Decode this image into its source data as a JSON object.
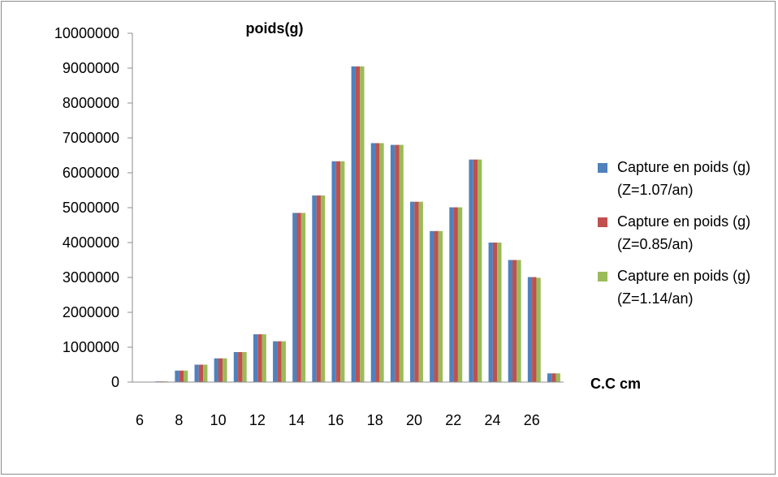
{
  "chart_data": {
    "type": "bar",
    "title": "poids(g)",
    "xlabel": "C.C cm",
    "ylabel": "",
    "ylim": [
      0,
      10000000
    ],
    "yticks": [
      "0",
      "1000000",
      "2000000",
      "3000000",
      "4000000",
      "5000000",
      "6000000",
      "7000000",
      "8000000",
      "9000000",
      "10000000"
    ],
    "categories": [
      "6",
      "7",
      "8",
      "9",
      "10",
      "11",
      "12",
      "13",
      "14",
      "15",
      "16",
      "17",
      "18",
      "19",
      "20",
      "21",
      "22",
      "23",
      "24",
      "25",
      "26",
      "27"
    ],
    "xtick_labels": [
      "6",
      "",
      "8",
      "",
      "10",
      "",
      "12",
      "",
      "14",
      "",
      "16",
      "",
      "18",
      "",
      "20",
      "",
      "22",
      "",
      "24",
      "",
      "26",
      ""
    ],
    "legend_position": "right",
    "grid": false,
    "series": [
      {
        "name": "Capture en poids (g)(Z=1.07/an)",
        "color": "#4F81BD",
        "values": [
          0,
          20000,
          330000,
          500000,
          680000,
          860000,
          1370000,
          1170000,
          4850000,
          5350000,
          6330000,
          9050000,
          6850000,
          6800000,
          5170000,
          4330000,
          5010000,
          6380000,
          4000000,
          3500000,
          3010000,
          250000
        ]
      },
      {
        "name": "Capture en poids (g)(Z=0.85/an)",
        "color": "#C0504D",
        "values": [
          0,
          20000,
          330000,
          500000,
          680000,
          860000,
          1370000,
          1170000,
          4850000,
          5350000,
          6330000,
          9050000,
          6850000,
          6800000,
          5170000,
          4330000,
          5010000,
          6380000,
          4000000,
          3500000,
          3010000,
          250000
        ]
      },
      {
        "name": "Capture en poids (g)(Z=1.14/an)",
        "color": "#9BBB59",
        "values": [
          0,
          20000,
          330000,
          500000,
          680000,
          860000,
          1370000,
          1170000,
          4850000,
          5350000,
          6330000,
          9050000,
          6850000,
          6800000,
          5170000,
          4330000,
          5010000,
          6380000,
          4000000,
          3500000,
          2990000,
          250000
        ]
      }
    ]
  }
}
